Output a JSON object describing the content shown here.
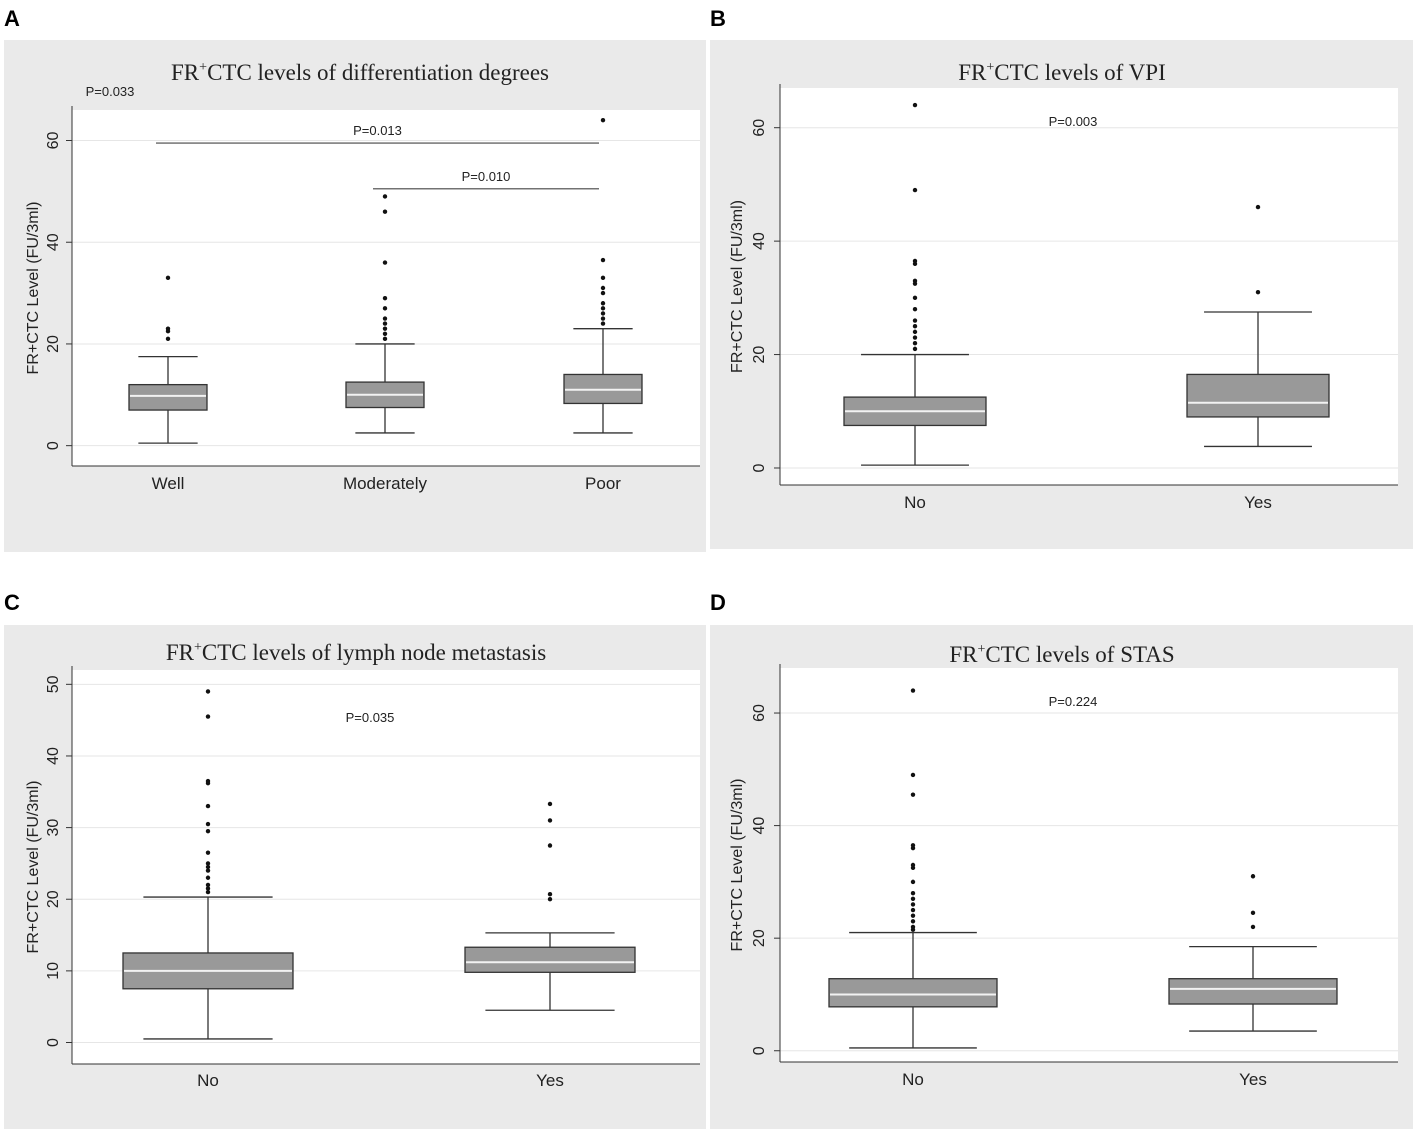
{
  "panel_letters": [
    "A",
    "B",
    "C",
    "D"
  ],
  "chart_data": [
    {
      "type": "box",
      "letter": "A",
      "title_prefix": "FR",
      "title_sup": "+",
      "title_rest": "CTC levels of differentiation degrees",
      "ylabel": "FR+CTC Level (FU/3ml)",
      "ylim": [
        -4,
        66
      ],
      "yticks": [
        0,
        20,
        40,
        60
      ],
      "categories": [
        "Well",
        "Moderately",
        "Poor"
      ],
      "boxes": [
        {
          "min": 0.5,
          "q1": 7,
          "median": 9.8,
          "q3": 12,
          "max": 17.5,
          "outliers": [
            21,
            22.5,
            23,
            33
          ]
        },
        {
          "min": 2.5,
          "q1": 7.5,
          "median": 10,
          "q3": 12.5,
          "max": 20,
          "outliers": [
            21,
            22,
            23,
            24,
            25,
            27,
            29,
            36,
            46,
            49
          ]
        },
        {
          "min": 2.5,
          "q1": 8.3,
          "median": 11,
          "q3": 14,
          "max": 23,
          "outliers": [
            24,
            25,
            26,
            27,
            28,
            30,
            31,
            33,
            36.5,
            64
          ]
        }
      ],
      "pvalues": [
        {
          "label": "P=0.033"
        },
        {
          "label": "P=0.013",
          "from": "Well",
          "to": "Poor",
          "y": 59.5
        },
        {
          "label": "P=0.010",
          "from": "Moderately",
          "to": "Poor",
          "y": 50.5
        }
      ]
    },
    {
      "type": "box",
      "letter": "B",
      "title_prefix": "FR",
      "title_sup": "+",
      "title_rest": "CTC levels of VPI",
      "ylabel": "FR+CTC Level (FU/3ml)",
      "ylim": [
        -3,
        67
      ],
      "yticks": [
        0,
        20,
        40,
        60
      ],
      "categories": [
        "No",
        "Yes"
      ],
      "boxes": [
        {
          "min": 0.5,
          "q1": 7.5,
          "median": 10,
          "q3": 12.5,
          "max": 20,
          "outliers": [
            21,
            22,
            23,
            24,
            25,
            26,
            28,
            30,
            32.5,
            33,
            36,
            36.5,
            49,
            64
          ]
        },
        {
          "min": 3.8,
          "q1": 9,
          "median": 11.5,
          "q3": 16.5,
          "max": 27.5,
          "outliers": [
            31,
            46
          ]
        }
      ],
      "pvalues": [
        {
          "label": "P=0.003"
        }
      ]
    },
    {
      "type": "box",
      "letter": "C",
      "title_prefix": "FR",
      "title_sup": "+",
      "title_rest": "CTC levels of lymph node metastasis",
      "ylabel": "FR+CTC Level (FU/3ml)",
      "ylim": [
        -3,
        52
      ],
      "yticks": [
        0,
        10,
        20,
        30,
        40,
        50
      ],
      "categories": [
        "No",
        "Yes"
      ],
      "boxes": [
        {
          "min": 0.5,
          "q1": 7.5,
          "median": 10,
          "q3": 12.5,
          "max": 20.3,
          "outliers": [
            21,
            21.5,
            22,
            23,
            24,
            24.5,
            25,
            26.5,
            29.5,
            30.5,
            33,
            36.2,
            36.5,
            45.5,
            49
          ]
        },
        {
          "min": 4.5,
          "q1": 9.8,
          "median": 11.2,
          "q3": 13.3,
          "max": 15.3,
          "outliers": [
            20,
            20.7,
            27.5,
            31,
            33.3
          ]
        }
      ],
      "pvalues": [
        {
          "label": "P=0.035"
        }
      ]
    },
    {
      "type": "box",
      "letter": "D",
      "title_prefix": "FR",
      "title_sup": "+",
      "title_rest": "CTC levels of STAS",
      "ylabel": "FR+CTC Level (FU/3ml)",
      "ylim": [
        -2,
        68
      ],
      "yticks": [
        0,
        20,
        40,
        60
      ],
      "categories": [
        "No",
        "Yes"
      ],
      "boxes": [
        {
          "min": 0.5,
          "q1": 7.8,
          "median": 10,
          "q3": 12.8,
          "max": 21,
          "outliers": [
            21.5,
            22,
            23,
            24,
            25,
            26,
            27,
            28,
            30,
            32.5,
            33,
            36,
            36.5,
            45.5,
            49,
            64
          ]
        },
        {
          "min": 3.5,
          "q1": 8.3,
          "median": 11,
          "q3": 12.8,
          "max": 18.5,
          "outliers": [
            22,
            24.5,
            31
          ]
        }
      ],
      "pvalues": [
        {
          "label": "P=0.224"
        }
      ]
    }
  ]
}
